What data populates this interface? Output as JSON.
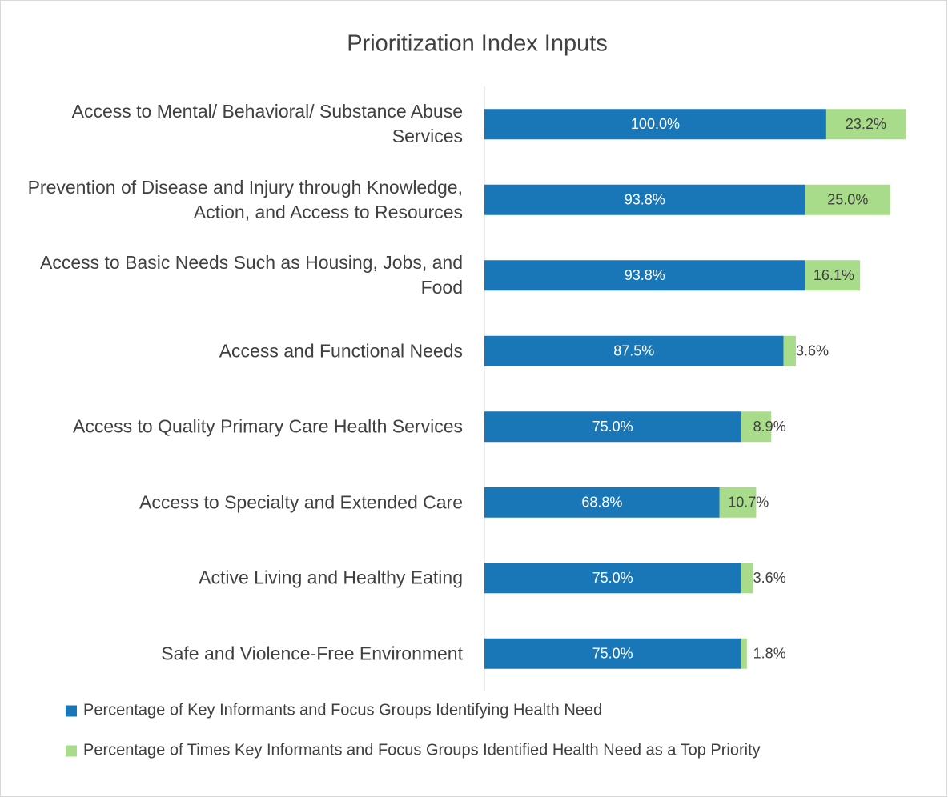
{
  "chart_data": {
    "type": "stacked-bar-horizontal",
    "title": "Prioritization Index Inputs",
    "categories": [
      "Access to Mental/ Behavioral/ Substance Abuse Services",
      "Prevention of Disease and Injury through Knowledge, Action, and Access to Resources",
      "Access to Basic Needs Such as Housing, Jobs, and Food",
      "Access and Functional Needs",
      "Access to Quality Primary Care Health Services",
      "Access to Specialty and Extended Care",
      "Active Living and Healthy Eating",
      "Safe and Violence-Free Environment"
    ],
    "series": [
      {
        "name": "Percentage of Key Informants and Focus Groups Identifying Health Need",
        "color": "#1a77b7",
        "values": [
          100.0,
          93.8,
          93.8,
          87.5,
          75.0,
          68.8,
          75.0,
          75.0
        ],
        "value_labels": [
          "100.0%",
          "93.8%",
          "93.8%",
          "87.5%",
          "75.0%",
          "68.8%",
          "75.0%",
          "75.0%"
        ]
      },
      {
        "name": "Percentage of Times Key Informants and Focus Groups Identified Health Need as a Top Priority",
        "color": "#a9dc8a",
        "values": [
          23.2,
          25.0,
          16.1,
          3.6,
          8.9,
          10.7,
          3.6,
          1.8
        ],
        "value_labels": [
          "23.2%",
          "25.0%",
          "16.1%",
          "3.6%",
          "8.9%",
          "10.7%",
          "3.6%",
          "1.8%"
        ]
      }
    ],
    "xlim": [
      0,
      130
    ],
    "legend": "bottom"
  }
}
